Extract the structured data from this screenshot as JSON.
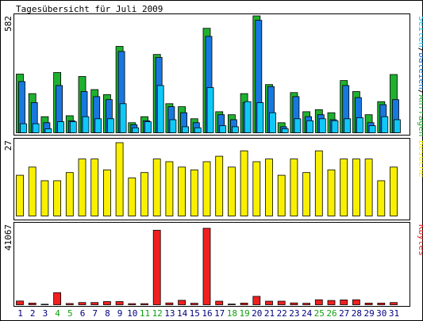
{
  "title": "Tagesübersicht für Juli 2009",
  "colors": {
    "anfragen": "#20b030",
    "dateien": "#1878e0",
    "seiten": "#10c8f8",
    "besuche": "#f8f000",
    "kbytes": "#f02020",
    "weekend_label": "#10a010",
    "weekday_label": "#000080"
  },
  "chart_data": [
    {
      "type": "bar",
      "panel": "hits",
      "categories": [
        "1",
        "2",
        "3",
        "4",
        "5",
        "6",
        "7",
        "8",
        "9",
        "10",
        "11",
        "12",
        "13",
        "14",
        "15",
        "16",
        "17",
        "18",
        "19",
        "20",
        "21",
        "22",
        "23",
        "24",
        "25",
        "26",
        "27",
        "28",
        "29",
        "30",
        "31"
      ],
      "weekend_days": [
        "4",
        "5",
        "11",
        "12",
        "18",
        "19",
        "25",
        "26"
      ],
      "ylabel_value": "582",
      "ylim": [
        0,
        582
      ],
      "legend": {
        "placement": "right",
        "parts": [
          {
            "text": "Seiten",
            "color": "#10c8f8"
          },
          {
            "text": "/",
            "color": "#000000"
          },
          {
            "text": "Dateien",
            "color": "#1878e0"
          },
          {
            "text": "/",
            "color": "#000000"
          },
          {
            "text": "Anfragen",
            "color": "#20b030"
          }
        ]
      },
      "series": [
        {
          "name": "Anfragen",
          "values": [
            292,
            195,
            80,
            300,
            85,
            280,
            215,
            190,
            430,
            50,
            80,
            390,
            145,
            130,
            70,
            520,
            105,
            90,
            195,
            582,
            240,
            50,
            200,
            105,
            115,
            100,
            260,
            205,
            90,
            155,
            290
          ]
        },
        {
          "name": "Dateien",
          "values": [
            255,
            150,
            50,
            235,
            60,
            205,
            180,
            165,
            405,
            40,
            60,
            375,
            130,
            100,
            50,
            480,
            90,
            65,
            150,
            560,
            230,
            30,
            180,
            80,
            90,
            65,
            235,
            175,
            50,
            140,
            165
          ]
        },
        {
          "name": "Seiten",
          "values": [
            45,
            45,
            20,
            55,
            55,
            80,
            70,
            70,
            145,
            25,
            55,
            235,
            65,
            30,
            25,
            225,
            35,
            30,
            155,
            150,
            100,
            20,
            70,
            60,
            70,
            60,
            70,
            75,
            35,
            80,
            65
          ]
        }
      ]
    },
    {
      "type": "bar",
      "panel": "visits",
      "categories": [
        "1",
        "2",
        "3",
        "4",
        "5",
        "6",
        "7",
        "8",
        "9",
        "10",
        "11",
        "12",
        "13",
        "14",
        "15",
        "16",
        "17",
        "18",
        "19",
        "20",
        "21",
        "22",
        "23",
        "24",
        "25",
        "26",
        "27",
        "28",
        "29",
        "30",
        "31"
      ],
      "ylabel_value": "27",
      "ylim": [
        0,
        27
      ],
      "legend": {
        "placement": "right",
        "parts": [
          {
            "text": "Besuche",
            "color": "#f8f000"
          }
        ]
      },
      "series": [
        {
          "name": "Besuche",
          "values": [
            15,
            18,
            13,
            13,
            16,
            21,
            21,
            17,
            27,
            14,
            16,
            21,
            20,
            18,
            17,
            20,
            22,
            18,
            24,
            20,
            21,
            15,
            21,
            16,
            24,
            17,
            21,
            21,
            21,
            13,
            18
          ]
        }
      ]
    },
    {
      "type": "bar",
      "panel": "kbytes",
      "categories": [
        "1",
        "2",
        "3",
        "4",
        "5",
        "6",
        "7",
        "8",
        "9",
        "10",
        "11",
        "12",
        "13",
        "14",
        "15",
        "16",
        "17",
        "18",
        "19",
        "20",
        "21",
        "22",
        "23",
        "24",
        "25",
        "26",
        "27",
        "28",
        "29",
        "30",
        "31"
      ],
      "ylabel_value": "41067",
      "ylim": [
        0,
        41067
      ],
      "legend": {
        "placement": "right",
        "parts": [
          {
            "text": "Kbytes",
            "color": "#f02020"
          }
        ]
      },
      "series": [
        {
          "name": "Kbytes",
          "values": [
            2000,
            900,
            300,
            6500,
            700,
            1200,
            1200,
            1700,
            1700,
            600,
            600,
            40000,
            1000,
            2400,
            800,
            41067,
            1900,
            400,
            900,
            4500,
            1900,
            1900,
            1000,
            800,
            2700,
            2300,
            2600,
            2700,
            900,
            900,
            1200
          ]
        }
      ]
    }
  ]
}
